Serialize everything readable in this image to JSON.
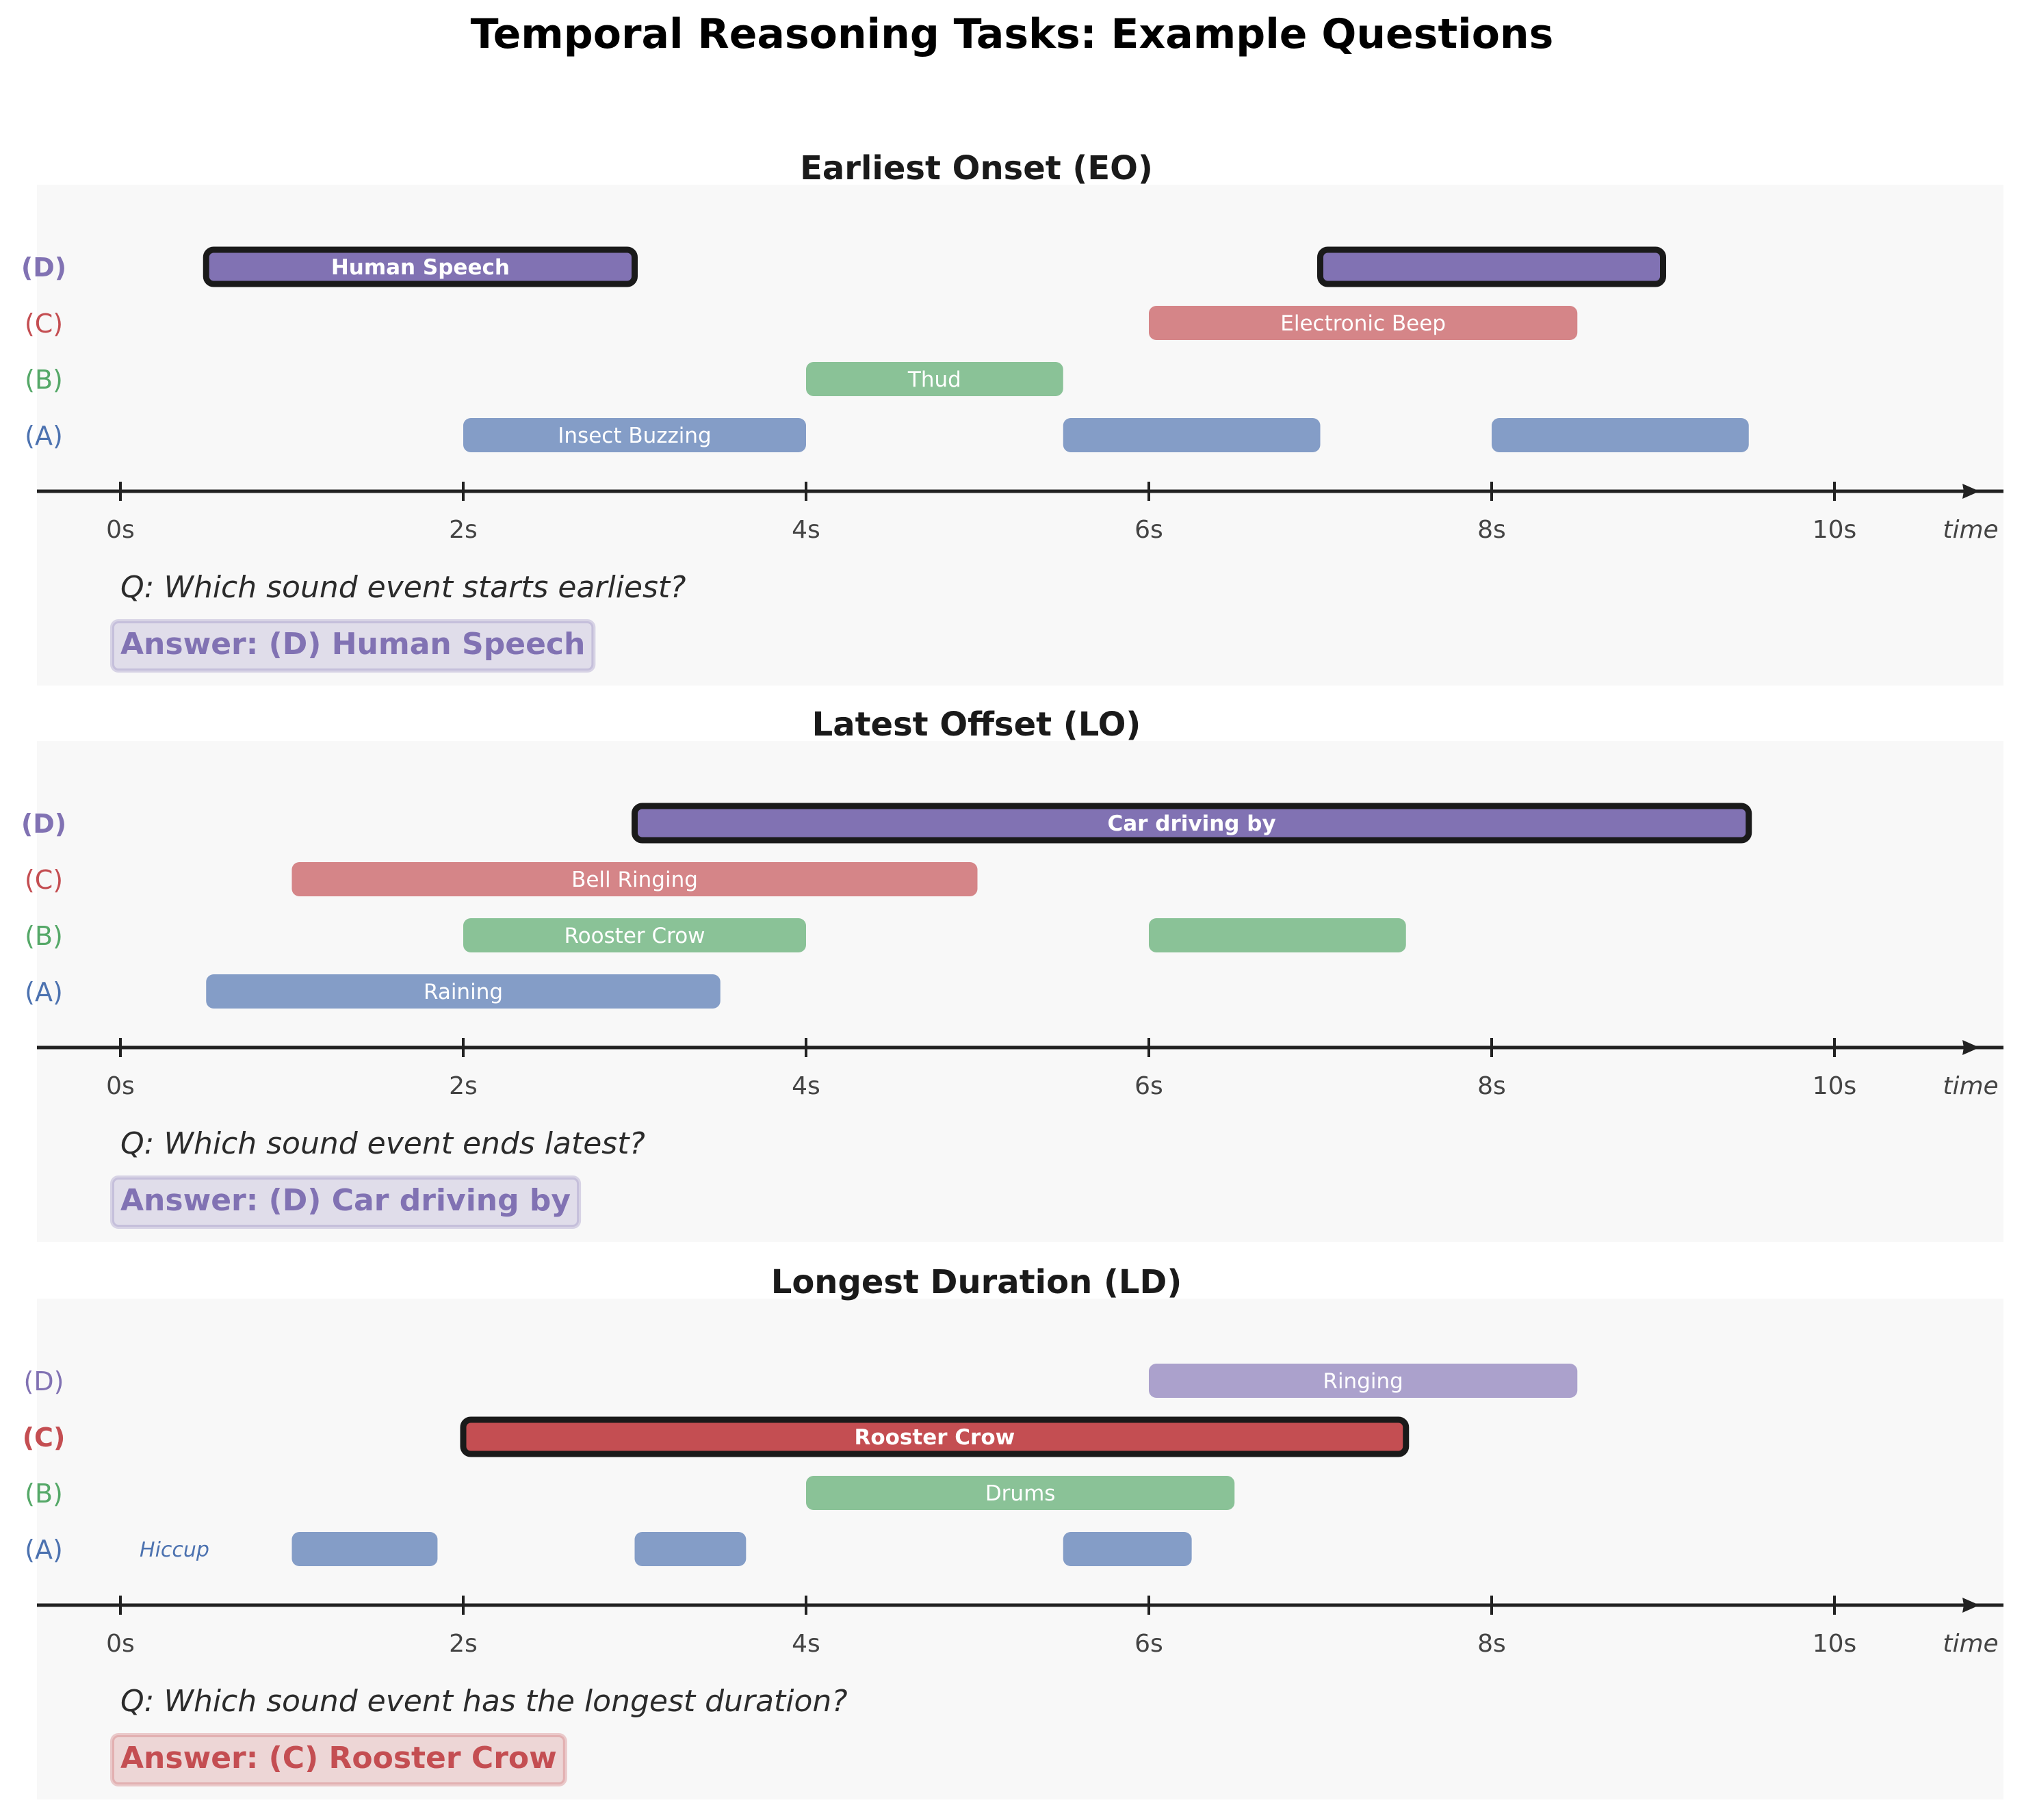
{
  "figure_title": "Temporal Reasoning Tasks: Example Questions",
  "colors": {
    "A": "#4c72b0",
    "B": "#55a868",
    "C": "#c44e52",
    "D": "#8172b3",
    "panel_bg": "#f8f8f8",
    "axis": "#222222",
    "highlight_outline": "#1a1a1a"
  },
  "axis": {
    "ticks": [
      0,
      2,
      4,
      6,
      8,
      10
    ],
    "tick_labels": [
      "0s",
      "2s",
      "4s",
      "6s",
      "8s",
      "10s"
    ],
    "label": "time",
    "range": [
      -0.5,
      11.0
    ]
  },
  "panels": [
    {
      "title": "Earliest Onset (EO)",
      "question": "Q: Which sound event starts earliest?",
      "answer": "Answer: (D) Human Speech",
      "answer_key": "D",
      "rows": [
        {
          "key": "D",
          "label": "(D)",
          "bold": true,
          "highlight": true,
          "light": false,
          "events": [
            [
              0.5,
              3.0
            ],
            [
              7.0,
              9.0
            ]
          ],
          "bar_label": "Human Speech",
          "label_event": 0
        },
        {
          "key": "C",
          "label": "(C)",
          "bold": false,
          "highlight": false,
          "light": false,
          "events": [
            [
              6.0,
              8.5
            ]
          ],
          "bar_label": "Electronic Beep",
          "label_event": 0
        },
        {
          "key": "B",
          "label": "(B)",
          "bold": false,
          "highlight": false,
          "light": false,
          "events": [
            [
              4.0,
              5.5
            ]
          ],
          "bar_label": "Thud",
          "label_event": 0
        },
        {
          "key": "A",
          "label": "(A)",
          "bold": false,
          "highlight": false,
          "light": false,
          "events": [
            [
              2.0,
              4.0
            ],
            [
              5.5,
              7.0
            ],
            [
              8.0,
              9.5
            ]
          ],
          "bar_label": "Insect Buzzing",
          "label_event": 0
        }
      ]
    },
    {
      "title": "Latest Offset (LO)",
      "question": "Q: Which sound event ends latest?",
      "answer": "Answer: (D) Car driving by",
      "answer_key": "D",
      "rows": [
        {
          "key": "D",
          "label": "(D)",
          "bold": true,
          "highlight": true,
          "light": false,
          "events": [
            [
              3.0,
              9.5
            ]
          ],
          "bar_label": "Car driving by",
          "label_event": 0
        },
        {
          "key": "C",
          "label": "(C)",
          "bold": false,
          "highlight": false,
          "light": false,
          "events": [
            [
              1.0,
              5.0
            ]
          ],
          "bar_label": "Bell Ringing",
          "label_event": 0
        },
        {
          "key": "B",
          "label": "(B)",
          "bold": false,
          "highlight": false,
          "light": false,
          "events": [
            [
              2.0,
              4.0
            ],
            [
              6.0,
              7.5
            ]
          ],
          "bar_label": "Rooster Crow",
          "label_event": 0
        },
        {
          "key": "A",
          "label": "(A)",
          "bold": false,
          "highlight": false,
          "light": false,
          "events": [
            [
              0.5,
              3.5
            ]
          ],
          "bar_label": "Raining",
          "label_event": 0
        }
      ]
    },
    {
      "title": "Longest Duration (LD)",
      "question": "Q: Which sound event has the longest duration?",
      "answer": "Answer: (C) Rooster Crow",
      "answer_key": "C",
      "rows": [
        {
          "key": "D",
          "label": "(D)",
          "bold": false,
          "highlight": false,
          "light": true,
          "events": [
            [
              6.0,
              8.5
            ]
          ],
          "bar_label": "Ringing",
          "label_event": 0
        },
        {
          "key": "C",
          "label": "(C)",
          "bold": true,
          "highlight": true,
          "light": false,
          "events": [
            [
              2.0,
              7.5
            ]
          ],
          "bar_label": "Rooster Crow",
          "label_event": 0
        },
        {
          "key": "B",
          "label": "(B)",
          "bold": false,
          "highlight": false,
          "light": false,
          "events": [
            [
              4.0,
              6.5
            ]
          ],
          "bar_label": "Drums",
          "label_event": 0
        },
        {
          "key": "A",
          "label": "(A)",
          "bold": false,
          "highlight": false,
          "light": false,
          "events": [
            [
              1.0,
              1.85
            ],
            [
              3.0,
              3.65
            ],
            [
              5.5,
              6.25
            ]
          ],
          "side_label": "Hiccup"
        }
      ]
    }
  ]
}
